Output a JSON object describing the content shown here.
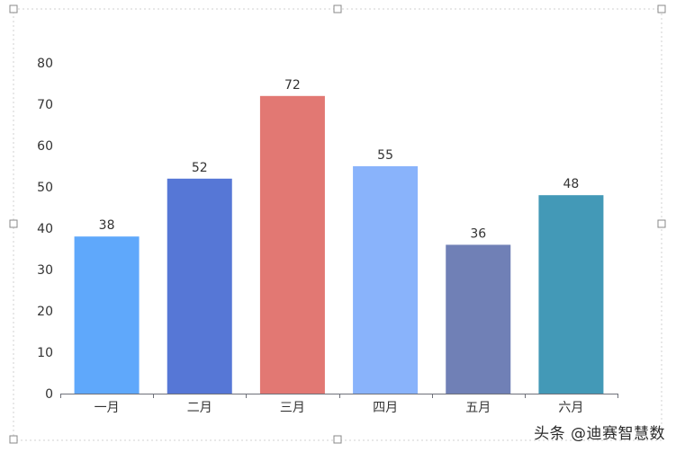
{
  "chart_data": {
    "type": "bar",
    "categories": [
      "一月",
      "二月",
      "三月",
      "四月",
      "五月",
      "六月"
    ],
    "values": [
      38,
      52,
      72,
      55,
      36,
      48
    ],
    "title": "",
    "xlabel": "",
    "ylabel": "",
    "ylim": [
      0,
      80
    ],
    "yticks": [
      "0",
      "10",
      "20",
      "30",
      "40",
      "50",
      "60",
      "70",
      "80"
    ],
    "grid": false,
    "bar_colors": [
      "#5fa8fb",
      "#5677d6",
      "#e27873",
      "#89b3fb",
      "#7080b6",
      "#4399b7"
    ]
  },
  "watermark": "头条 @迪赛智慧数"
}
